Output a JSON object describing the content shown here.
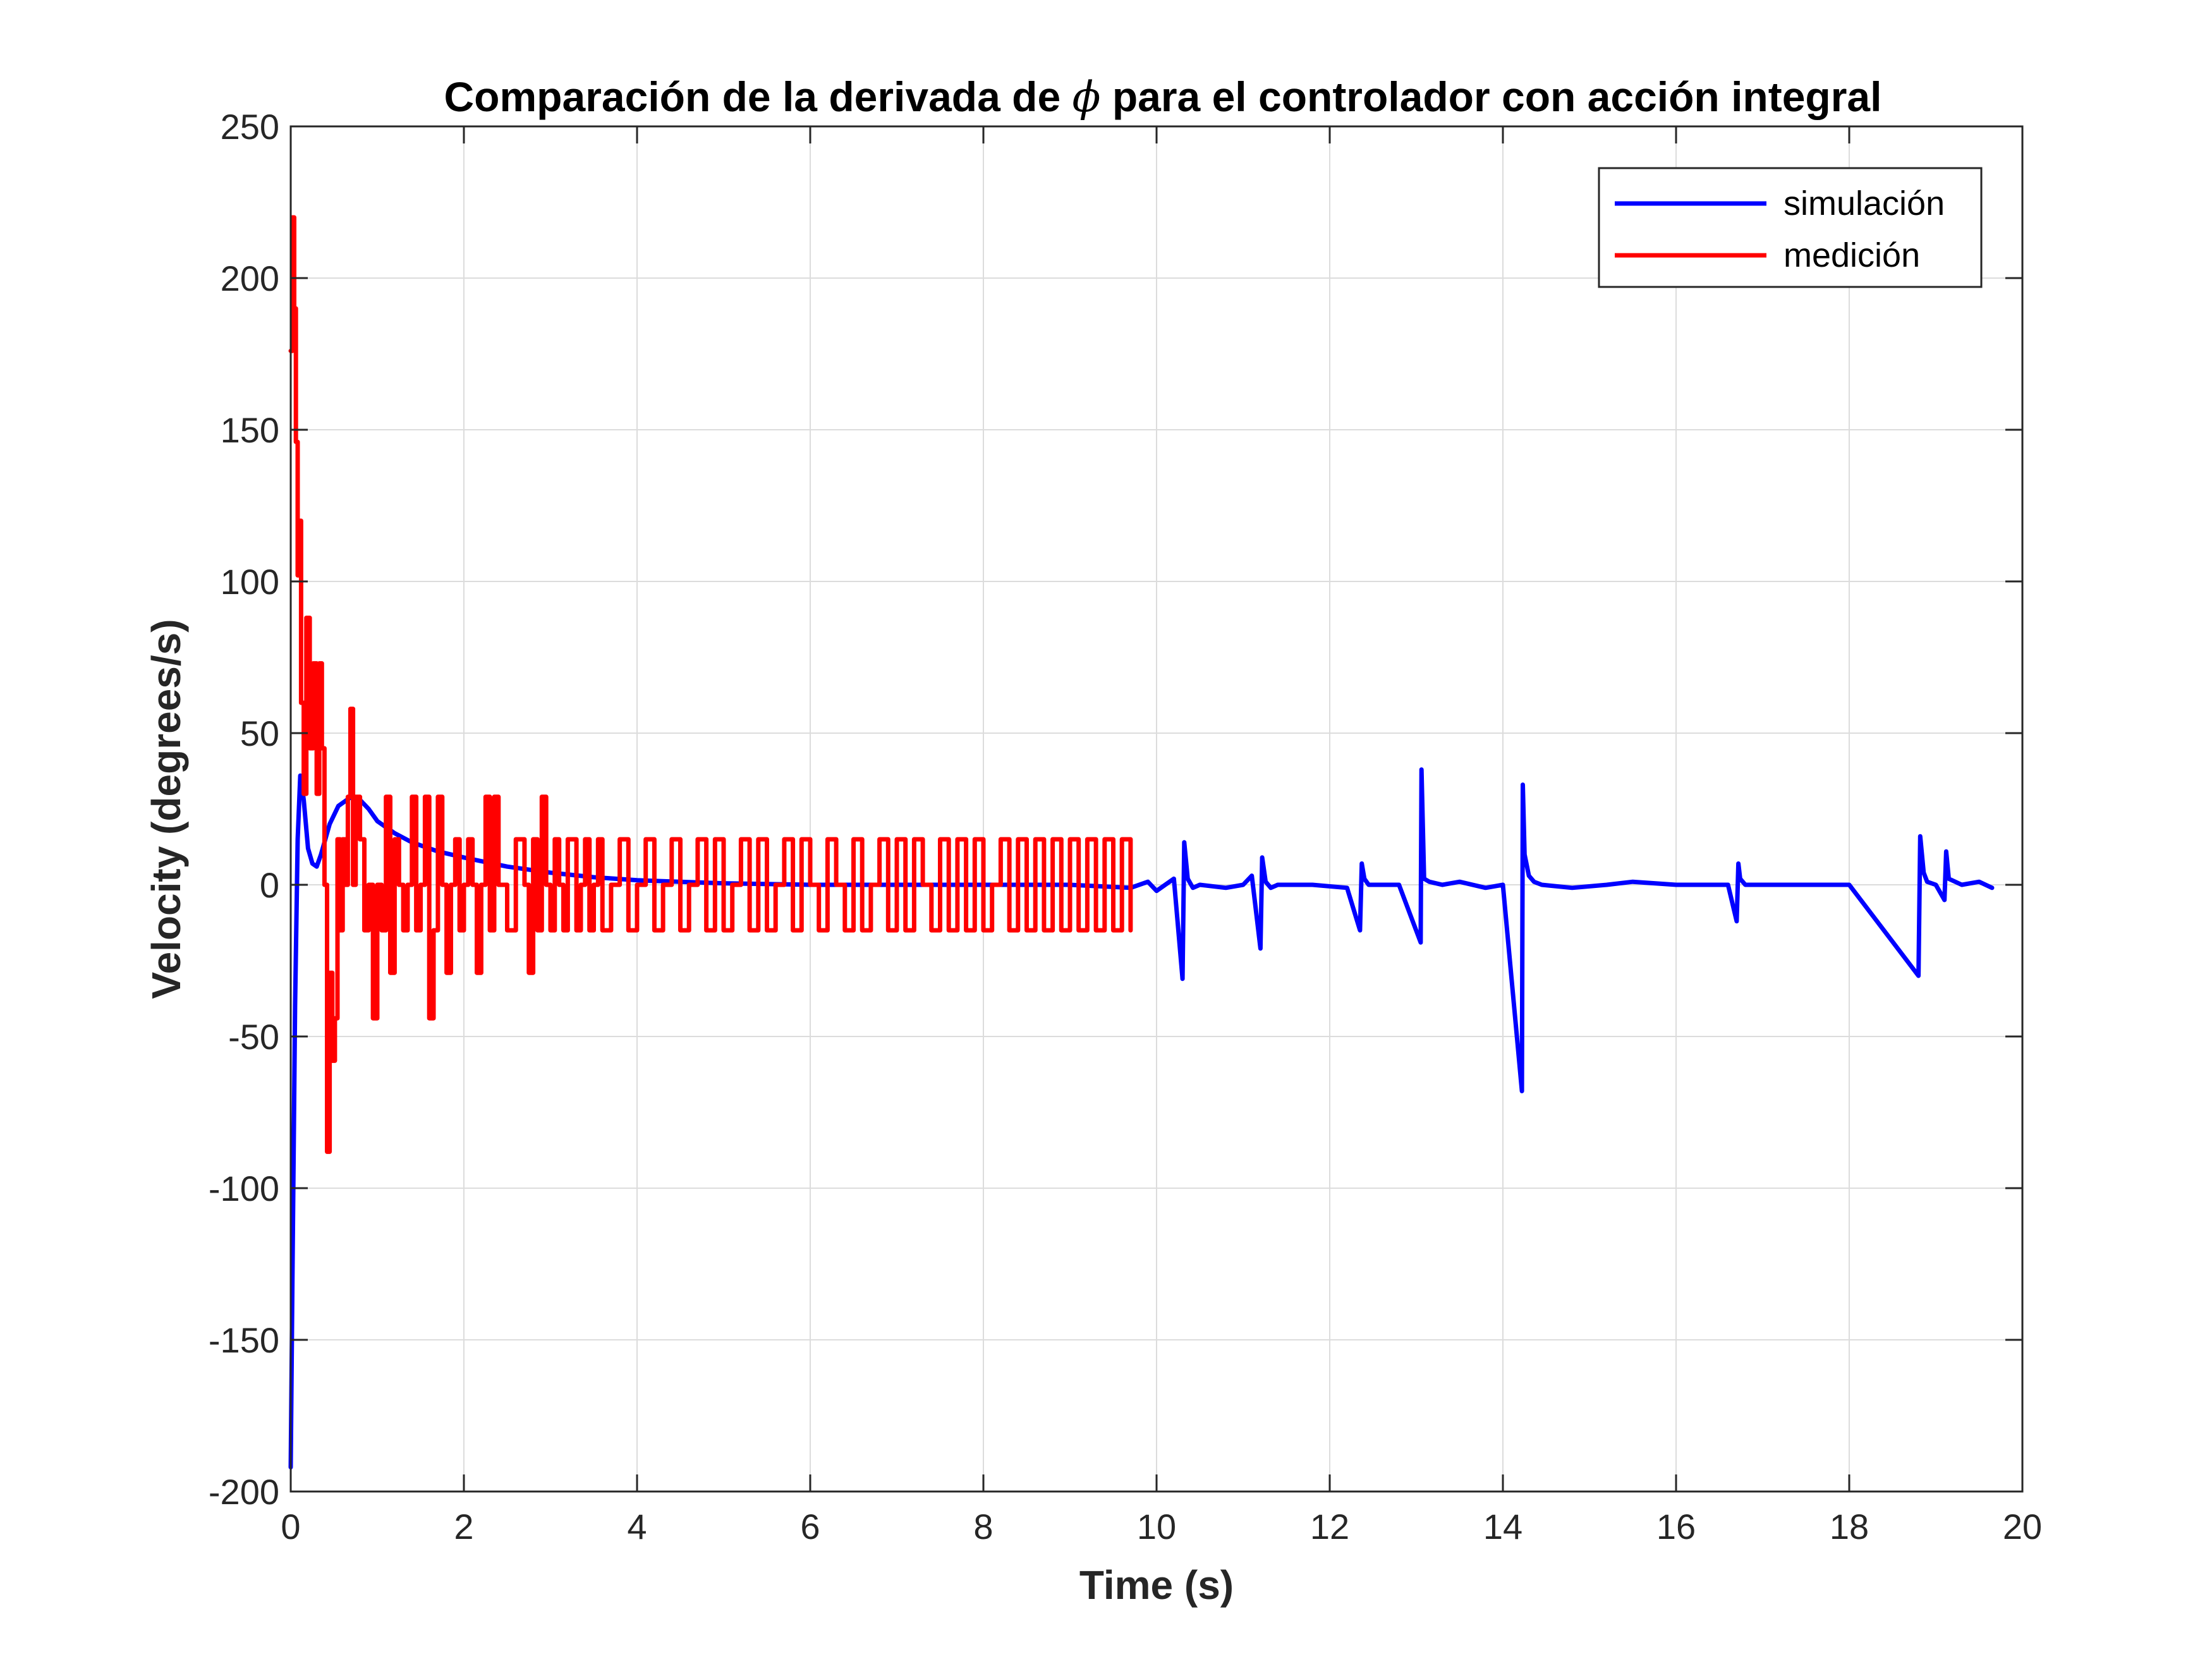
{
  "chart_data": {
    "type": "line",
    "title": {
      "before": "Comparación de la derivada de ",
      "symbol": "ϕ",
      "after": " para el controlador con acción integral"
    },
    "xlabel": "Time (s)",
    "ylabel": "Velocity (degrees/s)",
    "xlim": [
      0,
      20
    ],
    "ylim": [
      -200,
      250
    ],
    "xticks": [
      0,
      2,
      4,
      6,
      8,
      10,
      12,
      14,
      16,
      18,
      20
    ],
    "yticks": [
      -200,
      -150,
      -100,
      -50,
      0,
      50,
      100,
      150,
      200,
      250
    ],
    "grid": true,
    "legend_position": "top-right",
    "series": [
      {
        "name": "simulación",
        "color": "#0000ff",
        "x": [
          0,
          0.02,
          0.05,
          0.08,
          0.11,
          0.15,
          0.2,
          0.25,
          0.3,
          0.35,
          0.45,
          0.55,
          0.7,
          0.8,
          0.9,
          1.0,
          1.2,
          1.4,
          1.7,
          2.0,
          2.5,
          3.0,
          3.5,
          4.0,
          5.0,
          6.0,
          7.0,
          8.0,
          9.0,
          9.7,
          9.9,
          10.0,
          10.1,
          10.2,
          10.3,
          10.32,
          10.36,
          10.42,
          10.5,
          10.8,
          11.0,
          11.1,
          11.2,
          11.22,
          11.26,
          11.32,
          11.4,
          11.8,
          12.2,
          12.35,
          12.37,
          12.4,
          12.45,
          12.5,
          12.8,
          13.05,
          13.06,
          13.09,
          13.15,
          13.3,
          13.5,
          13.8,
          14.0,
          14.22,
          14.23,
          14.25,
          14.3,
          14.36,
          14.45,
          14.8,
          15.2,
          15.5,
          16.0,
          16.6,
          16.7,
          16.72,
          16.74,
          16.8,
          17.2,
          18.0,
          18.8,
          18.82,
          18.86,
          18.9,
          19.0,
          19.1,
          19.12,
          19.15,
          19.3,
          19.5,
          19.65
        ],
        "y": [
          -192,
          -130,
          -40,
          15,
          36,
          28,
          12,
          7,
          6,
          10,
          20,
          26,
          29,
          28,
          25,
          21,
          17,
          14,
          11,
          9,
          6,
          4,
          2.5,
          1.5,
          0.5,
          0,
          0,
          0,
          0,
          -1,
          1,
          -2,
          0,
          2,
          -31,
          14,
          2,
          -1,
          0,
          -1,
          0,
          3,
          -21,
          9,
          1,
          -1,
          0,
          0,
          -1,
          -15,
          7,
          2,
          0,
          0,
          0,
          -19,
          38,
          2,
          1,
          0,
          1,
          -1,
          0,
          -68,
          33,
          10,
          3,
          1,
          0,
          -1,
          0,
          1,
          0,
          0,
          -12,
          7,
          2,
          0,
          0,
          0,
          -30,
          16,
          4,
          1,
          0,
          -5,
          11,
          2,
          0,
          1,
          -1
        ]
      },
      {
        "name": "medición",
        "color": "#ff0000",
        "x": [
          0,
          0.02,
          0.04,
          0.06,
          0.08,
          0.1,
          0.12,
          0.15,
          0.18,
          0.22,
          0.26,
          0.3,
          0.33,
          0.36,
          0.39,
          0.42,
          0.45,
          0.48,
          0.51,
          0.54,
          0.57,
          0.6,
          0.63,
          0.66,
          0.69,
          0.72,
          0.75,
          0.8,
          0.85,
          0.9,
          0.95,
          1.0,
          1.05,
          1.1,
          1.15,
          1.2,
          1.25,
          1.3,
          1.35,
          1.4,
          1.45,
          1.5,
          1.55,
          1.6,
          1.65,
          1.7,
          1.75,
          1.8,
          1.85,
          1.9,
          1.95,
          2.0,
          2.05,
          2.1,
          2.15,
          2.2,
          2.25,
          2.3,
          2.35,
          2.4,
          2.5,
          2.6,
          2.7,
          2.75,
          2.8,
          2.85,
          2.9,
          2.95,
          3.0,
          3.05,
          3.1,
          3.15,
          3.2,
          3.3,
          3.35,
          3.4,
          3.45,
          3.5,
          3.55,
          3.6,
          3.7,
          3.8,
          3.9,
          4.0,
          4.1,
          4.2,
          4.3,
          4.4,
          4.5,
          4.6,
          4.7,
          4.8,
          4.9,
          5.0,
          5.1,
          5.2,
          5.3,
          5.4,
          5.5,
          5.6,
          5.7,
          5.8,
          5.9,
          6.0,
          6.1,
          6.2,
          6.3,
          6.4,
          6.5,
          6.6,
          6.7,
          6.8,
          6.9,
          7.0,
          7.1,
          7.2,
          7.3,
          7.4,
          7.5,
          7.6,
          7.7,
          7.8,
          7.9,
          8.0,
          8.1,
          8.2,
          8.3,
          8.4,
          8.5,
          8.6,
          8.7,
          8.8,
          8.9,
          9.0,
          9.1,
          9.2,
          9.3,
          9.4,
          9.5,
          9.6,
          9.7
        ],
        "y": [
          176,
          220,
          190,
          146,
          102,
          120,
          60,
          30,
          88,
          45,
          73,
          30,
          73,
          45,
          0,
          -88,
          -29,
          -58,
          -44,
          15,
          -15,
          15,
          0,
          29,
          58,
          0,
          29,
          15,
          -15,
          0,
          -44,
          0,
          -15,
          29,
          -29,
          15,
          0,
          -15,
          0,
          29,
          -15,
          0,
          29,
          -44,
          -15,
          29,
          0,
          -29,
          0,
          15,
          -15,
          0,
          15,
          0,
          -29,
          0,
          29,
          -15,
          29,
          0,
          -15,
          15,
          0,
          -29,
          15,
          -15,
          29,
          0,
          -15,
          15,
          0,
          -15,
          15,
          -15,
          0,
          15,
          -15,
          0,
          15,
          -15,
          0,
          15,
          -15,
          0,
          15,
          -15,
          0,
          15,
          -15,
          0,
          15,
          -15,
          15,
          -15,
          0,
          15,
          -15,
          15,
          -15,
          0,
          15,
          -15,
          15,
          0,
          -15,
          15,
          0,
          -15,
          15,
          -15,
          0,
          15,
          -15,
          15,
          -15,
          15,
          0,
          -15,
          15,
          -15,
          15,
          -15,
          15,
          -15,
          0,
          15,
          -15,
          15,
          -15,
          15,
          -15,
          15,
          -15,
          15,
          -15,
          15,
          -15,
          15,
          -15,
          15,
          -15
        ]
      }
    ]
  }
}
